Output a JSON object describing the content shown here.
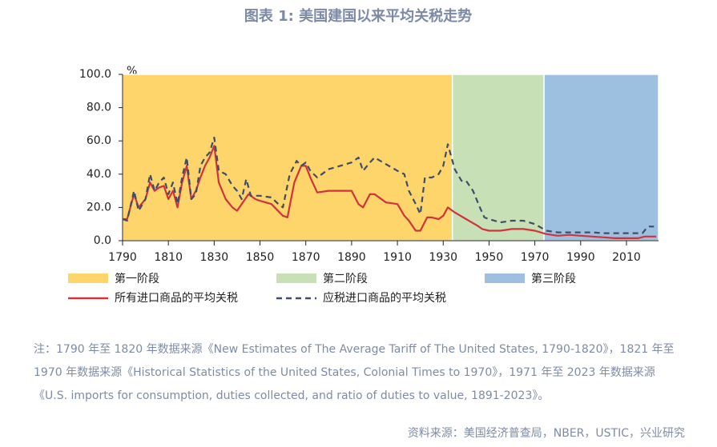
{
  "chart_data": {
    "type": "line",
    "title": "图表 1:  美国建国以来平均关税走势",
    "y_unit": "%",
    "xlim": [
      1790,
      2024
    ],
    "ylim": [
      0,
      100
    ],
    "xticks": [
      1790,
      1810,
      1830,
      1850,
      1870,
      1890,
      1910,
      1930,
      1950,
      1970,
      1990,
      2010
    ],
    "yticks": [
      {
        "value": 0,
        "label": "0.0"
      },
      {
        "value": 20,
        "label": "20.0"
      },
      {
        "value": 40,
        "label": "40.0"
      },
      {
        "value": 60,
        "label": "60.0"
      },
      {
        "value": 80,
        "label": "80.0"
      },
      {
        "value": 100,
        "label": "100.0"
      }
    ],
    "phases": [
      {
        "name": "第一阶段",
        "start": 1790,
        "end": 1934,
        "color": "#fdd56a"
      },
      {
        "name": "第二阶段",
        "start": 1934,
        "end": 1974,
        "color": "#c7e0b5"
      },
      {
        "name": "第三阶段",
        "start": 1974,
        "end": 2024,
        "color": "#9dbfe0"
      }
    ],
    "series": [
      {
        "name": "所有进口商品的平均关税",
        "color": "#d2323c",
        "dashed": false,
        "x": [
          1790,
          1792,
          1795,
          1797,
          1800,
          1802,
          1804,
          1806,
          1808,
          1810,
          1812,
          1814,
          1816,
          1818,
          1820,
          1822,
          1824,
          1826,
          1828,
          1830,
          1832,
          1835,
          1838,
          1840,
          1842,
          1845,
          1848,
          1850,
          1855,
          1860,
          1862,
          1865,
          1868,
          1870,
          1872,
          1875,
          1880,
          1885,
          1890,
          1893,
          1895,
          1898,
          1900,
          1905,
          1910,
          1913,
          1915,
          1918,
          1920,
          1923,
          1925,
          1928,
          1930,
          1932,
          1935,
          1940,
          1945,
          1947,
          1950,
          1955,
          1960,
          1965,
          1970,
          1975,
          1980,
          1985,
          1990,
          1995,
          2000,
          2005,
          2010,
          2015,
          2018,
          2020,
          2023
        ],
        "values": [
          13,
          13,
          28,
          20,
          25,
          35,
          30,
          32,
          33,
          25,
          30,
          20,
          35,
          45,
          25,
          30,
          38,
          45,
          50,
          57,
          35,
          25,
          20,
          18,
          22,
          28,
          25,
          24,
          22,
          15,
          14,
          35,
          45,
          45,
          38,
          29,
          30,
          30,
          30,
          22,
          20,
          28,
          28,
          23,
          22,
          15,
          12,
          6,
          6,
          14,
          14,
          13,
          15,
          20,
          17,
          13,
          9,
          7,
          6,
          6,
          7,
          7,
          6,
          4,
          3,
          3.5,
          3,
          2.5,
          2,
          1.5,
          1.5,
          1.5,
          2.5,
          2.5,
          2.5
        ]
      },
      {
        "name": "应税进口商品的平均关税",
        "color": "#3e4d6b",
        "dashed": true,
        "x": [
          1790,
          1792,
          1795,
          1797,
          1800,
          1802,
          1804,
          1806,
          1808,
          1810,
          1812,
          1814,
          1816,
          1818,
          1820,
          1822,
          1824,
          1826,
          1828,
          1830,
          1832,
          1835,
          1838,
          1840,
          1842,
          1844,
          1846,
          1850,
          1855,
          1858,
          1860,
          1863,
          1866,
          1868,
          1870,
          1872,
          1875,
          1880,
          1885,
          1890,
          1893,
          1895,
          1898,
          1900,
          1905,
          1910,
          1913,
          1915,
          1918,
          1920,
          1922,
          1925,
          1928,
          1930,
          1932,
          1935,
          1938,
          1940,
          1943,
          1946,
          1948,
          1950,
          1955,
          1960,
          1965,
          1970,
          1975,
          1980,
          1985,
          1990,
          1995,
          2000,
          2005,
          2010,
          2015,
          2017,
          2019,
          2020,
          2022
        ],
        "values": [
          13,
          12,
          30,
          18,
          25,
          40,
          30,
          35,
          38,
          28,
          35,
          22,
          38,
          50,
          25,
          28,
          45,
          50,
          53,
          62,
          42,
          40,
          33,
          30,
          25,
          37,
          27,
          27,
          26,
          22,
          20,
          40,
          48,
          45,
          47,
          42,
          38,
          43,
          45,
          47,
          50,
          42,
          47,
          50,
          46,
          42,
          40,
          30,
          22,
          16,
          38,
          38,
          40,
          45,
          58,
          43,
          36,
          36,
          30,
          20,
          14,
          13,
          11,
          12,
          12,
          10,
          6,
          5,
          5,
          5,
          5,
          4.5,
          4.5,
          4.5,
          4.5,
          4.5,
          8,
          8.5,
          8.5
        ]
      }
    ],
    "note": [
      "注：1790 年至 1820 年数据来源《New Estimates of The Average Tariff of The United States, 1790-1820》，1821 年至",
      "1970 年数据来源《Historical Statistics of the United States, Colonial Times to 1970》，1971 年至 2023 年数据来源",
      "《U.S. imports for consumption, duties collected, and ratio of duties to value, 1891-2023》。"
    ],
    "source": "资料来源：美国经济普查局，NBER，USTIC，兴业研究"
  }
}
